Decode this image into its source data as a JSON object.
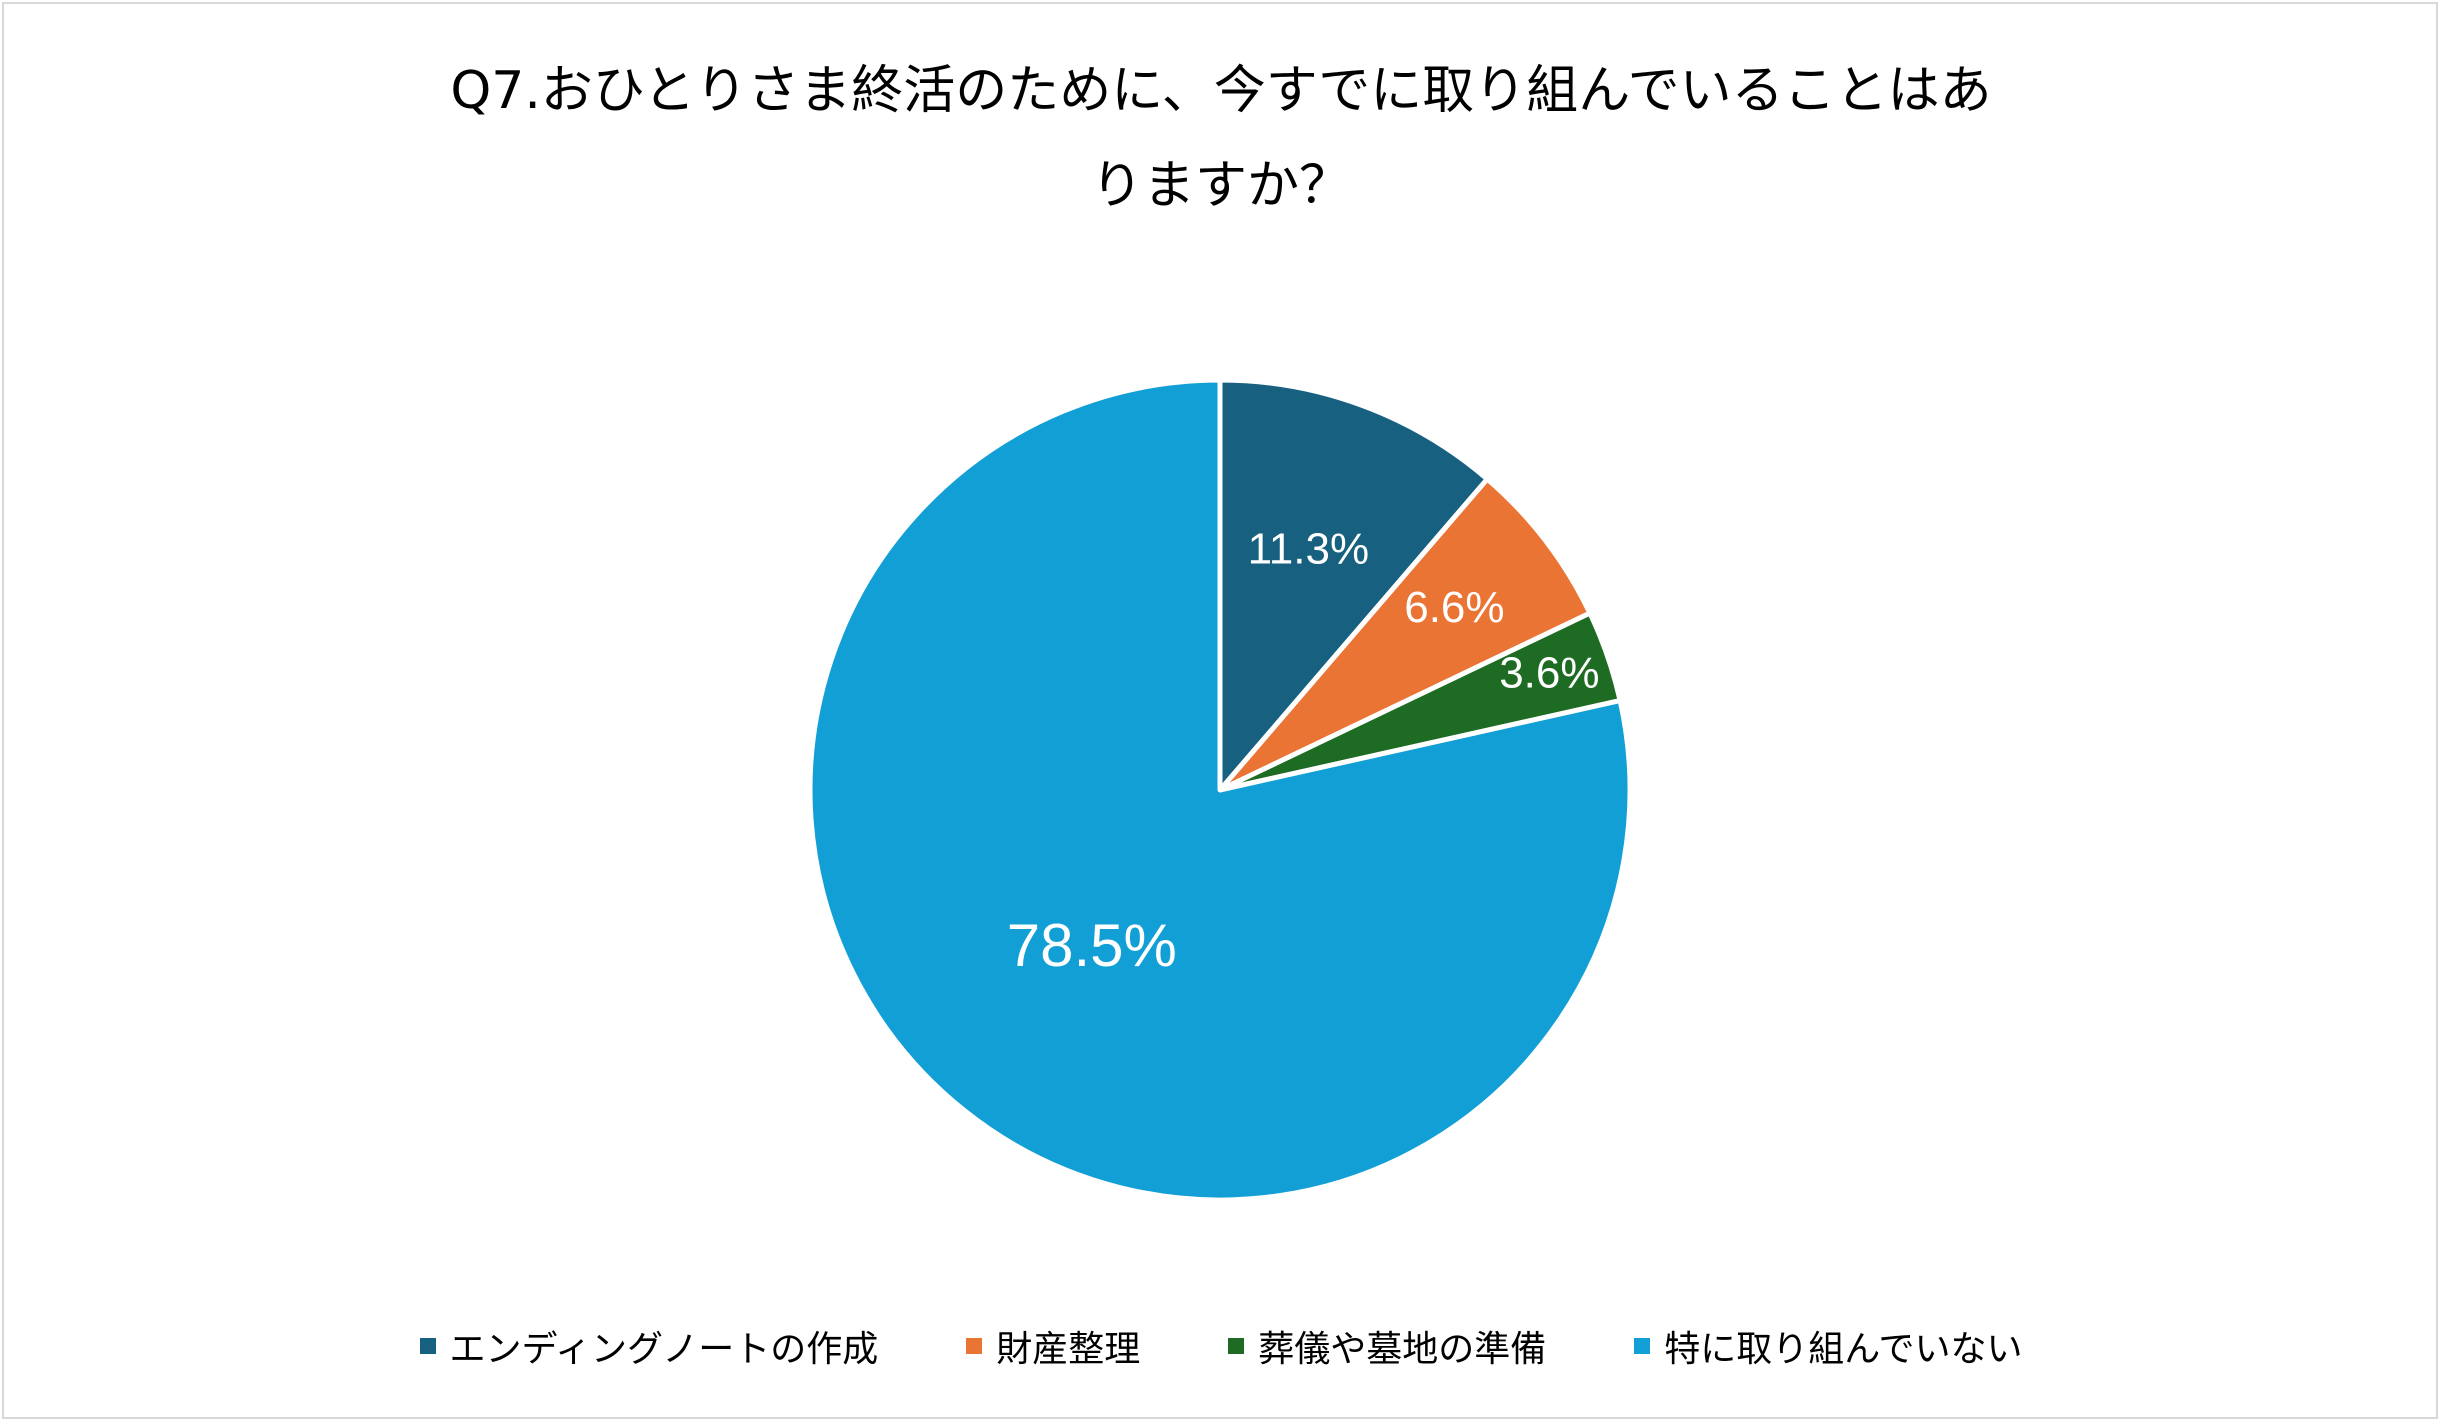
{
  "chart_data": {
    "type": "pie",
    "title": "Q7.おひとりさま終活のために、今すでに取り組んでいることはありますか？",
    "title_lines": [
      "Q7.おひとりさま終活のために、今すでに取り組んでいることはあ",
      "りますか？"
    ],
    "categories": [
      "エンディングノートの作成",
      "財産整理",
      "葬儀や墓地の準備",
      "特に取り組んでいない"
    ],
    "values": [
      11.3,
      6.6,
      3.6,
      78.5
    ],
    "data_labels": [
      "11.3%",
      "6.6%",
      "3.6%",
      "78.5%"
    ],
    "colors": [
      "#17607f",
      "#ea7433",
      "#1e6b23",
      "#119fd6"
    ],
    "legend_position": "bottom",
    "start_angle_deg": 0,
    "direction": "clockwise"
  }
}
